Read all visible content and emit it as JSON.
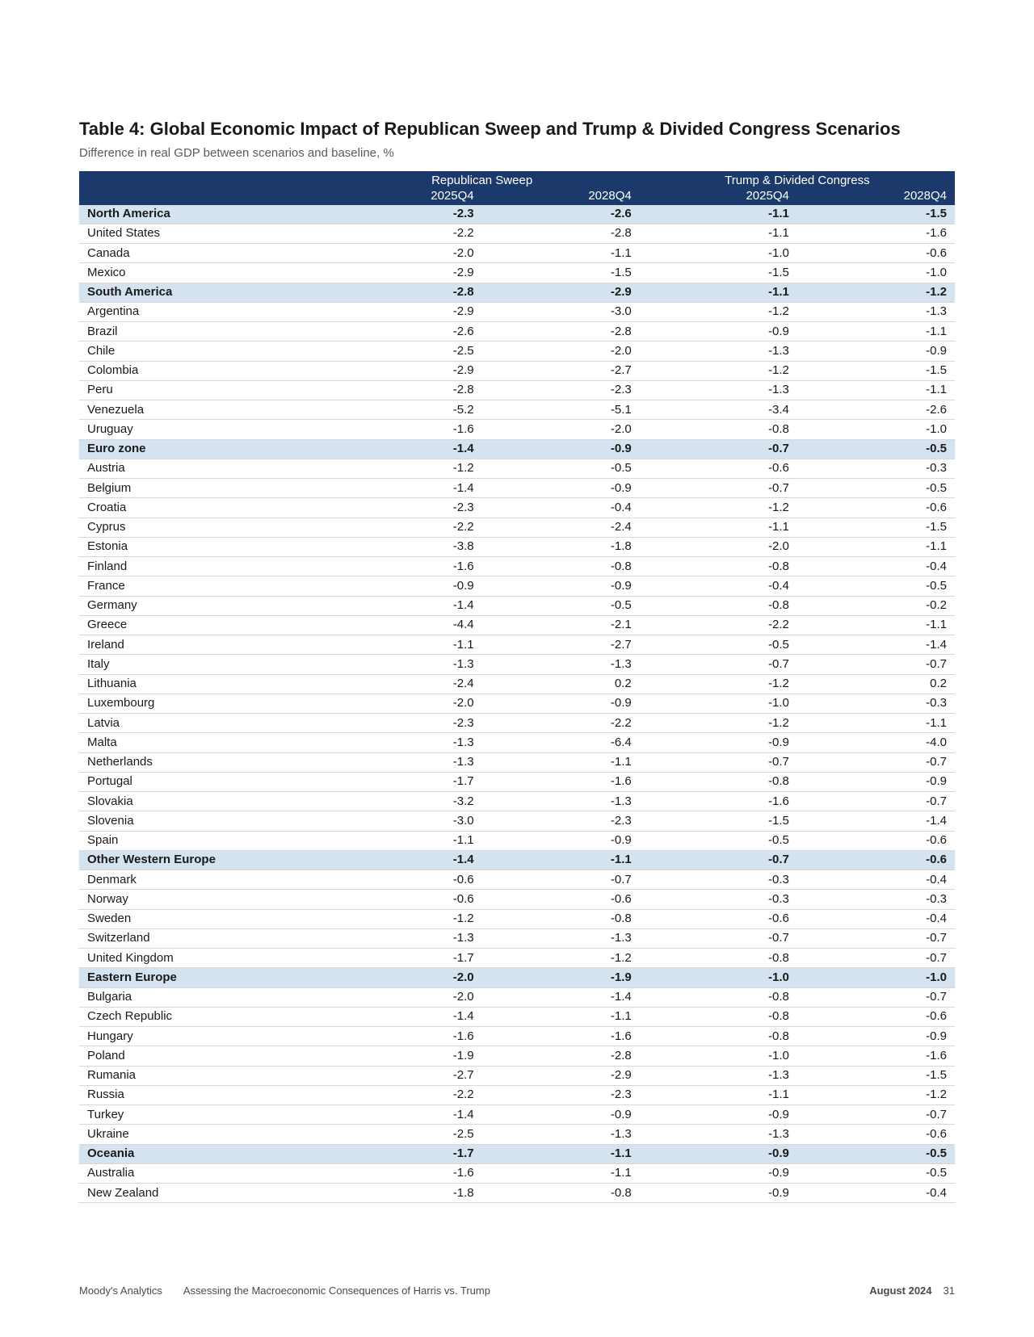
{
  "title": "Table 4: Global Economic Impact of Republican Sweep and Trump & Divided Congress Scenarios",
  "subtitle": "Difference in real GDP between scenarios and baseline, %",
  "header": {
    "scenario1": "Republican Sweep",
    "scenario2": "Trump & Divided Congress",
    "col1": "2025Q4",
    "col2": "2028Q4",
    "col3": "2025Q4",
    "col4": "2028Q4"
  },
  "rows": [
    {
      "region": true,
      "label": "North America",
      "v": [
        "-2.3",
        "-2.6",
        "-1.1",
        "-1.5"
      ]
    },
    {
      "region": false,
      "label": "United States",
      "v": [
        "-2.2",
        "-2.8",
        "-1.1",
        "-1.6"
      ]
    },
    {
      "region": false,
      "label": "Canada",
      "v": [
        "-2.0",
        "-1.1",
        "-1.0",
        "-0.6"
      ]
    },
    {
      "region": false,
      "label": "Mexico",
      "v": [
        "-2.9",
        "-1.5",
        "-1.5",
        "-1.0"
      ]
    },
    {
      "region": true,
      "label": "South America",
      "v": [
        "-2.8",
        "-2.9",
        "-1.1",
        "-1.2"
      ]
    },
    {
      "region": false,
      "label": "Argentina",
      "v": [
        "-2.9",
        "-3.0",
        "-1.2",
        "-1.3"
      ]
    },
    {
      "region": false,
      "label": "Brazil",
      "v": [
        "-2.6",
        "-2.8",
        "-0.9",
        "-1.1"
      ]
    },
    {
      "region": false,
      "label": "Chile",
      "v": [
        "-2.5",
        "-2.0",
        "-1.3",
        "-0.9"
      ]
    },
    {
      "region": false,
      "label": "Colombia",
      "v": [
        "-2.9",
        "-2.7",
        "-1.2",
        "-1.5"
      ]
    },
    {
      "region": false,
      "label": "Peru",
      "v": [
        "-2.8",
        "-2.3",
        "-1.3",
        "-1.1"
      ]
    },
    {
      "region": false,
      "label": "Venezuela",
      "v": [
        "-5.2",
        "-5.1",
        "-3.4",
        "-2.6"
      ]
    },
    {
      "region": false,
      "label": "Uruguay",
      "v": [
        "-1.6",
        "-2.0",
        "-0.8",
        "-1.0"
      ]
    },
    {
      "region": true,
      "label": "Euro zone",
      "v": [
        "-1.4",
        "-0.9",
        "-0.7",
        "-0.5"
      ]
    },
    {
      "region": false,
      "label": "Austria",
      "v": [
        "-1.2",
        "-0.5",
        "-0.6",
        "-0.3"
      ]
    },
    {
      "region": false,
      "label": "Belgium",
      "v": [
        "-1.4",
        "-0.9",
        "-0.7",
        "-0.5"
      ]
    },
    {
      "region": false,
      "label": "Croatia",
      "v": [
        "-2.3",
        "-0.4",
        "-1.2",
        "-0.6"
      ]
    },
    {
      "region": false,
      "label": "Cyprus",
      "v": [
        "-2.2",
        "-2.4",
        "-1.1",
        "-1.5"
      ]
    },
    {
      "region": false,
      "label": "Estonia",
      "v": [
        "-3.8",
        "-1.8",
        "-2.0",
        "-1.1"
      ]
    },
    {
      "region": false,
      "label": "Finland",
      "v": [
        "-1.6",
        "-0.8",
        "-0.8",
        "-0.4"
      ]
    },
    {
      "region": false,
      "label": "France",
      "v": [
        "-0.9",
        "-0.9",
        "-0.4",
        "-0.5"
      ]
    },
    {
      "region": false,
      "label": "Germany",
      "v": [
        "-1.4",
        "-0.5",
        "-0.8",
        "-0.2"
      ]
    },
    {
      "region": false,
      "label": "Greece",
      "v": [
        "-4.4",
        "-2.1",
        "-2.2",
        "-1.1"
      ]
    },
    {
      "region": false,
      "label": "Ireland",
      "v": [
        "-1.1",
        "-2.7",
        "-0.5",
        "-1.4"
      ]
    },
    {
      "region": false,
      "label": "Italy",
      "v": [
        "-1.3",
        "-1.3",
        "-0.7",
        "-0.7"
      ]
    },
    {
      "region": false,
      "label": "Lithuania",
      "v": [
        "-2.4",
        "0.2",
        "-1.2",
        "0.2"
      ]
    },
    {
      "region": false,
      "label": "Luxembourg",
      "v": [
        "-2.0",
        "-0.9",
        "-1.0",
        "-0.3"
      ]
    },
    {
      "region": false,
      "label": "Latvia",
      "v": [
        "-2.3",
        "-2.2",
        "-1.2",
        "-1.1"
      ]
    },
    {
      "region": false,
      "label": "Malta",
      "v": [
        "-1.3",
        "-6.4",
        "-0.9",
        "-4.0"
      ]
    },
    {
      "region": false,
      "label": "Netherlands",
      "v": [
        "-1.3",
        "-1.1",
        "-0.7",
        "-0.7"
      ]
    },
    {
      "region": false,
      "label": "Portugal",
      "v": [
        "-1.7",
        "-1.6",
        "-0.8",
        "-0.9"
      ]
    },
    {
      "region": false,
      "label": "Slovakia",
      "v": [
        "-3.2",
        "-1.3",
        "-1.6",
        "-0.7"
      ]
    },
    {
      "region": false,
      "label": "Slovenia",
      "v": [
        "-3.0",
        "-2.3",
        "-1.5",
        "-1.4"
      ]
    },
    {
      "region": false,
      "label": "Spain",
      "v": [
        "-1.1",
        "-0.9",
        "-0.5",
        "-0.6"
      ]
    },
    {
      "region": true,
      "label": "Other Western Europe",
      "v": [
        "-1.4",
        "-1.1",
        "-0.7",
        "-0.6"
      ]
    },
    {
      "region": false,
      "label": "Denmark",
      "v": [
        "-0.6",
        "-0.7",
        "-0.3",
        "-0.4"
      ]
    },
    {
      "region": false,
      "label": "Norway",
      "v": [
        "-0.6",
        "-0.6",
        "-0.3",
        "-0.3"
      ]
    },
    {
      "region": false,
      "label": "Sweden",
      "v": [
        "-1.2",
        "-0.8",
        "-0.6",
        "-0.4"
      ]
    },
    {
      "region": false,
      "label": "Switzerland",
      "v": [
        "-1.3",
        "-1.3",
        "-0.7",
        "-0.7"
      ]
    },
    {
      "region": false,
      "label": "United Kingdom",
      "v": [
        "-1.7",
        "-1.2",
        "-0.8",
        "-0.7"
      ]
    },
    {
      "region": true,
      "label": "Eastern Europe",
      "v": [
        "-2.0",
        "-1.9",
        "-1.0",
        "-1.0"
      ]
    },
    {
      "region": false,
      "label": "Bulgaria",
      "v": [
        "-2.0",
        "-1.4",
        "-0.8",
        "-0.7"
      ]
    },
    {
      "region": false,
      "label": "Czech Republic",
      "v": [
        "-1.4",
        "-1.1",
        "-0.8",
        "-0.6"
      ]
    },
    {
      "region": false,
      "label": "Hungary",
      "v": [
        "-1.6",
        "-1.6",
        "-0.8",
        "-0.9"
      ]
    },
    {
      "region": false,
      "label": "Poland",
      "v": [
        "-1.9",
        "-2.8",
        "-1.0",
        "-1.6"
      ]
    },
    {
      "region": false,
      "label": "Rumania",
      "v": [
        "-2.7",
        "-2.9",
        "-1.3",
        "-1.5"
      ]
    },
    {
      "region": false,
      "label": "Russia",
      "v": [
        "-2.2",
        "-2.3",
        "-1.1",
        "-1.2"
      ]
    },
    {
      "region": false,
      "label": "Turkey",
      "v": [
        "-1.4",
        "-0.9",
        "-0.9",
        "-0.7"
      ]
    },
    {
      "region": false,
      "label": "Ukraine",
      "v": [
        "-2.5",
        "-1.3",
        "-1.3",
        "-0.6"
      ]
    },
    {
      "region": true,
      "label": "Oceania",
      "v": [
        "-1.7",
        "-1.1",
        "-0.9",
        "-0.5"
      ]
    },
    {
      "region": false,
      "label": "Australia",
      "v": [
        "-1.6",
        "-1.1",
        "-0.9",
        "-0.5"
      ]
    },
    {
      "region": false,
      "label": "New Zealand",
      "v": [
        "-1.8",
        "-0.8",
        "-0.9",
        "-0.4"
      ]
    }
  ],
  "footer": {
    "brand": "Moody's Analytics",
    "doc": "Assessing the Macroeconomic Consequences of Harris vs. Trump",
    "date": "August 2024",
    "page": "31"
  },
  "style": {
    "header_bg": "#1b3a6b",
    "header_fg": "#ffffff",
    "region_bg": "#d5e3f0",
    "row_border": "#d8d8d8",
    "title_fontsize": 22,
    "body_fontsize": 15
  }
}
